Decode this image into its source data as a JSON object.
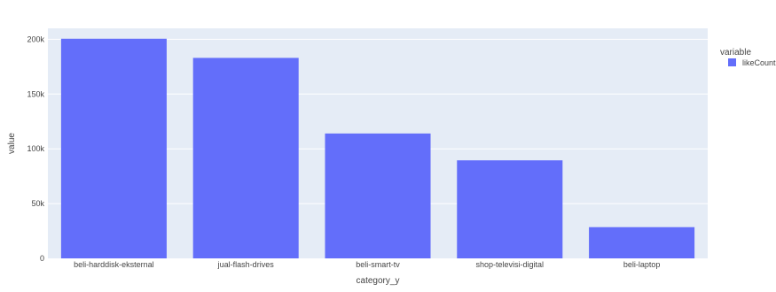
{
  "chart_data": {
    "type": "bar",
    "xlabel": "category_y",
    "ylabel": "value",
    "categories": [
      "beli-harddisk-eksternal",
      "jual-flash-drives",
      "beli-smart-tv",
      "shop-televisi-digital",
      "beli-laptop"
    ],
    "series": [
      {
        "name": "likeCount",
        "values": [
          200500,
          183000,
          114000,
          89500,
          28500
        ]
      }
    ],
    "ylim": [
      0,
      210000
    ],
    "yticks": [
      0,
      50000,
      100000,
      150000,
      200000
    ],
    "ytick_labels": [
      "0",
      "50k",
      "100k",
      "150k",
      "200k"
    ],
    "grid": true,
    "legend": {
      "title": "variable",
      "placement": "right"
    },
    "colors": {
      "bar": "#636efa",
      "plot_bg": "#e5ecf6",
      "grid": "#ffffff"
    }
  }
}
